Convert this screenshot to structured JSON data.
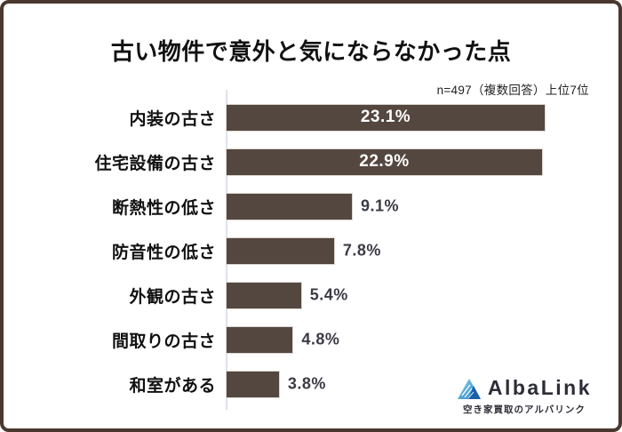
{
  "chart_data": {
    "type": "bar",
    "orientation": "horizontal",
    "title": "古い物件で意外と気にならなかった点",
    "note": "n=497（複数回答）上位7位",
    "categories": [
      "内装の古さ",
      "住宅設備の古さ",
      "断熱性の低さ",
      "防音性の低さ",
      "外観の古さ",
      "間取りの古さ",
      "和室がある"
    ],
    "values": [
      23.1,
      22.9,
      9.1,
      7.8,
      5.4,
      4.8,
      3.8
    ],
    "value_labels": [
      "23.1%",
      "22.9%",
      "9.1%",
      "7.8%",
      "5.4%",
      "4.8%",
      "3.8%"
    ],
    "xlim": [
      0,
      23.1
    ],
    "grid": false,
    "legend": false,
    "bar_color": "#54473f",
    "value_label_inside_color": "#ffffff",
    "value_label_outside_color": "#3b3b46",
    "axis_line_color": "#e2e2ea"
  },
  "branding": {
    "logo_text": "AlbaLink",
    "tagline": "空き家買取のアルバリンク",
    "logo_colors": {
      "light_blue": "#7fd0f0",
      "blue": "#2a7fc0",
      "dark_blue": "#1a5fa8",
      "text": "#2d2d38"
    }
  },
  "frame": {
    "border_color": "#4a382f",
    "background": "#ffffff"
  }
}
